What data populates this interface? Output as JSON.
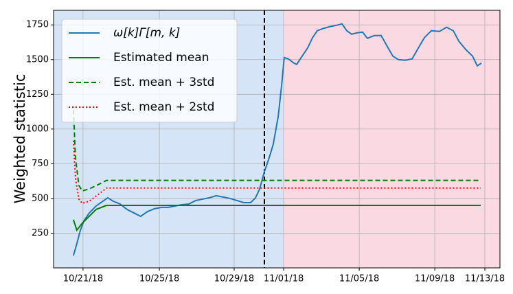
{
  "chart_data": {
    "type": "line",
    "ylabel": "Weighted statistic",
    "xlim": [
      19.44,
      43.07
    ],
    "ylim": [
      0,
      1855
    ],
    "xticks": [
      {
        "value": 21,
        "label": "10/21/18"
      },
      {
        "value": 25.04,
        "label": "10/25/18"
      },
      {
        "value": 29,
        "label": "10/29/18"
      },
      {
        "value": 31.62,
        "label": "11/01/18"
      },
      {
        "value": 35.62,
        "label": "11/05/18"
      },
      {
        "value": 39.62,
        "label": "11/09/18"
      },
      {
        "value": 42.27,
        "label": "11/13/18"
      }
    ],
    "yticks": [
      250,
      500,
      750,
      1000,
      1250,
      1500,
      1750
    ],
    "grid": true,
    "legend": "upper left",
    "spans": [
      {
        "range": [
          19.44,
          31.62
        ],
        "color": "#d6e4f8"
      },
      {
        "range": [
          31.62,
          43.07
        ],
        "color": "#fbd9e3"
      }
    ],
    "vline": 30.6,
    "series": [
      {
        "name": "ω[k]Γ[m, k]",
        "color": "#1f77b4",
        "linestyle": "solid",
        "x": [
          20.49,
          20.67,
          20.85,
          21.04,
          21.33,
          21.69,
          22.05,
          22.31,
          22.6,
          22.96,
          23.33,
          23.69,
          24.05,
          24.42,
          24.78,
          25.15,
          25.51,
          25.87,
          26.24,
          26.6,
          26.96,
          27.33,
          27.69,
          28.05,
          28.42,
          28.78,
          29.15,
          29.51,
          29.87,
          30.13,
          30.35,
          30.6,
          30.85,
          31.07,
          31.33,
          31.51,
          31.65,
          31.87,
          32.16,
          32.31,
          32.6,
          32.89,
          33.15,
          33.4,
          33.69,
          34.05,
          34.42,
          34.71,
          34.96,
          35.22,
          35.51,
          35.8,
          36.05,
          36.42,
          36.78,
          37.15,
          37.4,
          37.69,
          38.05,
          38.42,
          38.71,
          39.07,
          39.44,
          39.87,
          40.24,
          40.6,
          40.89,
          41.25,
          41.62,
          41.87,
          42.09
        ],
        "values": [
          89,
          173,
          267,
          337,
          396,
          446,
          480,
          505,
          480,
          460,
          421,
          396,
          371,
          406,
          426,
          436,
          436,
          446,
          455,
          460,
          485,
          495,
          505,
          520,
          510,
          500,
          485,
          470,
          470,
          505,
          569,
          693,
          792,
          891,
          1089,
          1312,
          1515,
          1505,
          1475,
          1465,
          1525,
          1584,
          1658,
          1708,
          1723,
          1737,
          1747,
          1757,
          1708,
          1683,
          1693,
          1698,
          1653,
          1673,
          1673,
          1584,
          1525,
          1500,
          1495,
          1505,
          1574,
          1658,
          1708,
          1703,
          1733,
          1708,
          1633,
          1574,
          1525,
          1455,
          1475
        ]
      },
      {
        "name": "Estimated mean",
        "color": "#008000",
        "linestyle": "solid",
        "x": [
          20.49,
          20.67,
          20.96,
          21.69,
          22.24,
          42.05
        ],
        "values": [
          347,
          272,
          322,
          421,
          450,
          450
        ]
      },
      {
        "name": "Est. mean + 3std",
        "color": "#008000",
        "linestyle": "dashed",
        "x": [
          20.49,
          20.6,
          20.78,
          20.96,
          21.33,
          21.87,
          22.24,
          42.05
        ],
        "values": [
          1139,
          792,
          594,
          554,
          569,
          604,
          630,
          630
        ]
      },
      {
        "name": "Est. mean + 2std",
        "color": "#ff0000",
        "linestyle": "dotted",
        "x": [
          20.49,
          20.6,
          20.78,
          20.96,
          21.33,
          21.87,
          22.24,
          42.05
        ],
        "values": [
          916,
          644,
          495,
          465,
          480,
          535,
          575,
          575
        ]
      }
    ]
  }
}
